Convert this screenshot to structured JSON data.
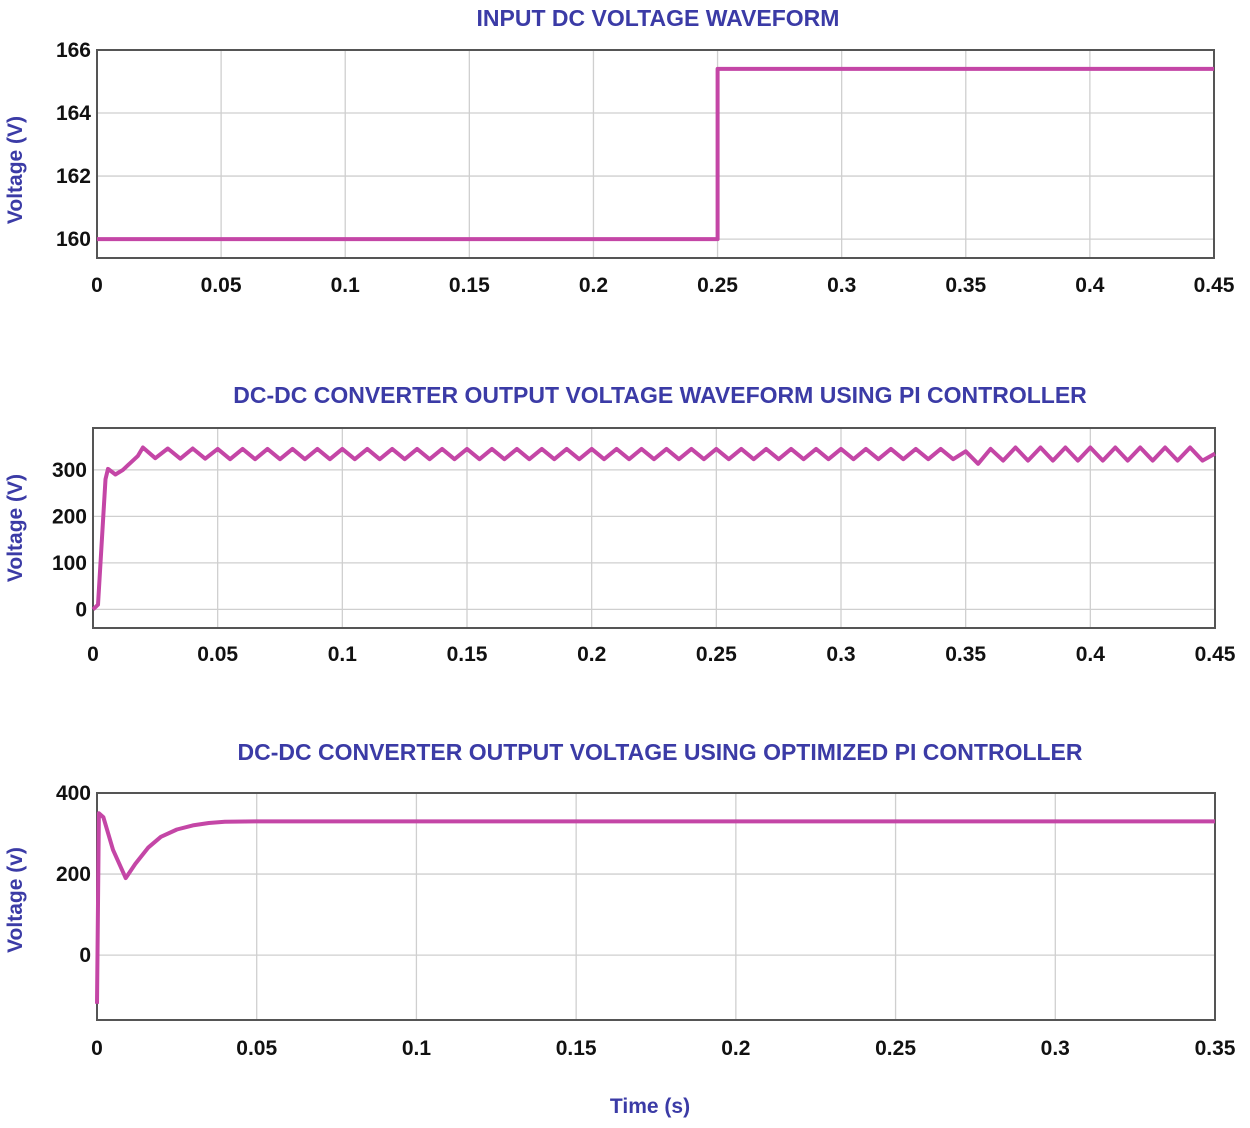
{
  "line_color": "#c446a6",
  "label_color": "#3b3ba6",
  "xlabel": "Time (s)",
  "chart_data": [
    {
      "type": "line",
      "title": "INPUT DC VOLTAGE WAVEFORM",
      "xlabel": "",
      "ylabel": "Voltage (V)",
      "xlim": [
        0,
        0.45
      ],
      "ylim": [
        159.4,
        166
      ],
      "xticks": [
        "0",
        "0.05",
        "0.1",
        "0.15",
        "0.2",
        "0.25",
        "0.3",
        "0.35",
        "0.4",
        "0.45"
      ],
      "xtick_values": [
        0,
        0.05,
        0.1,
        0.15,
        0.2,
        0.25,
        0.3,
        0.35,
        0.4,
        0.45
      ],
      "yticks": [
        "160",
        "162",
        "164",
        "166"
      ],
      "ytick_values": [
        160,
        162,
        164,
        166
      ],
      "grid": true,
      "points": [
        [
          0,
          160
        ],
        [
          0.25,
          160
        ],
        [
          0.25,
          165.4
        ],
        [
          0.45,
          165.4
        ]
      ]
    },
    {
      "type": "line",
      "title": "DC-DC CONVERTER OUTPUT VOLTAGE WAVEFORM USING PI CONTROLLER",
      "xlabel": "",
      "ylabel": "Voltage (V)",
      "xlim": [
        0,
        0.45
      ],
      "ylim": [
        -40,
        390
      ],
      "xticks": [
        "0",
        "0.05",
        "0.1",
        "0.15",
        "0.2",
        "0.25",
        "0.3",
        "0.35",
        "0.4",
        "0.45"
      ],
      "xtick_values": [
        0,
        0.05,
        0.1,
        0.15,
        0.2,
        0.25,
        0.3,
        0.35,
        0.4,
        0.45
      ],
      "yticks": [
        "0",
        "100",
        "200",
        "300"
      ],
      "ytick_values": [
        0,
        100,
        200,
        300
      ],
      "grid": true,
      "points": [
        [
          0,
          0
        ],
        [
          0.002,
          10
        ],
        [
          0.005,
          280
        ],
        [
          0.006,
          302
        ],
        [
          0.009,
          290
        ],
        [
          0.012,
          300
        ],
        [
          0.018,
          330
        ],
        [
          0.02,
          348
        ],
        [
          0.025,
          325
        ],
        [
          0.03,
          346
        ],
        [
          0.035,
          324
        ],
        [
          0.04,
          346
        ],
        [
          0.045,
          324
        ],
        [
          0.05,
          345
        ],
        [
          0.055,
          323
        ],
        [
          0.06,
          345
        ],
        [
          0.065,
          323
        ],
        [
          0.07,
          345
        ],
        [
          0.075,
          323
        ],
        [
          0.08,
          345
        ],
        [
          0.085,
          323
        ],
        [
          0.09,
          345
        ],
        [
          0.095,
          323
        ],
        [
          0.1,
          345
        ],
        [
          0.105,
          323
        ],
        [
          0.11,
          345
        ],
        [
          0.115,
          323
        ],
        [
          0.12,
          345
        ],
        [
          0.125,
          323
        ],
        [
          0.13,
          345
        ],
        [
          0.135,
          323
        ],
        [
          0.14,
          345
        ],
        [
          0.145,
          323
        ],
        [
          0.15,
          345
        ],
        [
          0.155,
          323
        ],
        [
          0.16,
          345
        ],
        [
          0.165,
          323
        ],
        [
          0.17,
          345
        ],
        [
          0.175,
          323
        ],
        [
          0.18,
          345
        ],
        [
          0.185,
          323
        ],
        [
          0.19,
          345
        ],
        [
          0.195,
          323
        ],
        [
          0.2,
          345
        ],
        [
          0.205,
          323
        ],
        [
          0.21,
          345
        ],
        [
          0.215,
          323
        ],
        [
          0.22,
          345
        ],
        [
          0.225,
          323
        ],
        [
          0.23,
          345
        ],
        [
          0.235,
          323
        ],
        [
          0.24,
          345
        ],
        [
          0.245,
          323
        ],
        [
          0.25,
          345
        ],
        [
          0.255,
          323
        ],
        [
          0.26,
          345
        ],
        [
          0.265,
          323
        ],
        [
          0.27,
          345
        ],
        [
          0.275,
          323
        ],
        [
          0.28,
          345
        ],
        [
          0.285,
          323
        ],
        [
          0.29,
          345
        ],
        [
          0.295,
          323
        ],
        [
          0.3,
          345
        ],
        [
          0.305,
          323
        ],
        [
          0.31,
          345
        ],
        [
          0.315,
          323
        ],
        [
          0.32,
          345
        ],
        [
          0.325,
          323
        ],
        [
          0.33,
          345
        ],
        [
          0.335,
          323
        ],
        [
          0.34,
          345
        ],
        [
          0.345,
          323
        ],
        [
          0.35,
          340
        ],
        [
          0.355,
          313
        ],
        [
          0.36,
          345
        ],
        [
          0.365,
          320
        ],
        [
          0.37,
          348
        ],
        [
          0.375,
          320
        ],
        [
          0.38,
          348
        ],
        [
          0.385,
          320
        ],
        [
          0.39,
          348
        ],
        [
          0.395,
          320
        ],
        [
          0.4,
          348
        ],
        [
          0.405,
          320
        ],
        [
          0.41,
          348
        ],
        [
          0.415,
          320
        ],
        [
          0.42,
          348
        ],
        [
          0.425,
          320
        ],
        [
          0.43,
          348
        ],
        [
          0.435,
          320
        ],
        [
          0.44,
          348
        ],
        [
          0.445,
          320
        ],
        [
          0.45,
          335
        ]
      ]
    },
    {
      "type": "line",
      "title": "DC-DC CONVERTER OUTPUT VOLTAGE USING OPTIMIZED PI CONTROLLER",
      "xlabel": "Time (s)",
      "ylabel": "Voltage (v)",
      "xlim": [
        0,
        0.35
      ],
      "ylim": [
        -160,
        400
      ],
      "xticks": [
        "0",
        "0.05",
        "0.1",
        "0.15",
        "0.2",
        "0.25",
        "0.3",
        "0.35"
      ],
      "xtick_values": [
        0,
        0.05,
        0.1,
        0.15,
        0.2,
        0.25,
        0.3,
        0.35
      ],
      "yticks": [
        "0",
        "200",
        "400"
      ],
      "ytick_values": [
        0,
        200,
        400
      ],
      "grid": true,
      "points": [
        [
          0,
          -120
        ],
        [
          0.0006,
          350
        ],
        [
          0.002,
          340
        ],
        [
          0.005,
          260
        ],
        [
          0.009,
          190
        ],
        [
          0.012,
          225
        ],
        [
          0.016,
          265
        ],
        [
          0.02,
          292
        ],
        [
          0.025,
          310
        ],
        [
          0.03,
          320
        ],
        [
          0.035,
          326
        ],
        [
          0.04,
          329
        ],
        [
          0.05,
          330
        ],
        [
          0.35,
          330
        ]
      ]
    }
  ]
}
